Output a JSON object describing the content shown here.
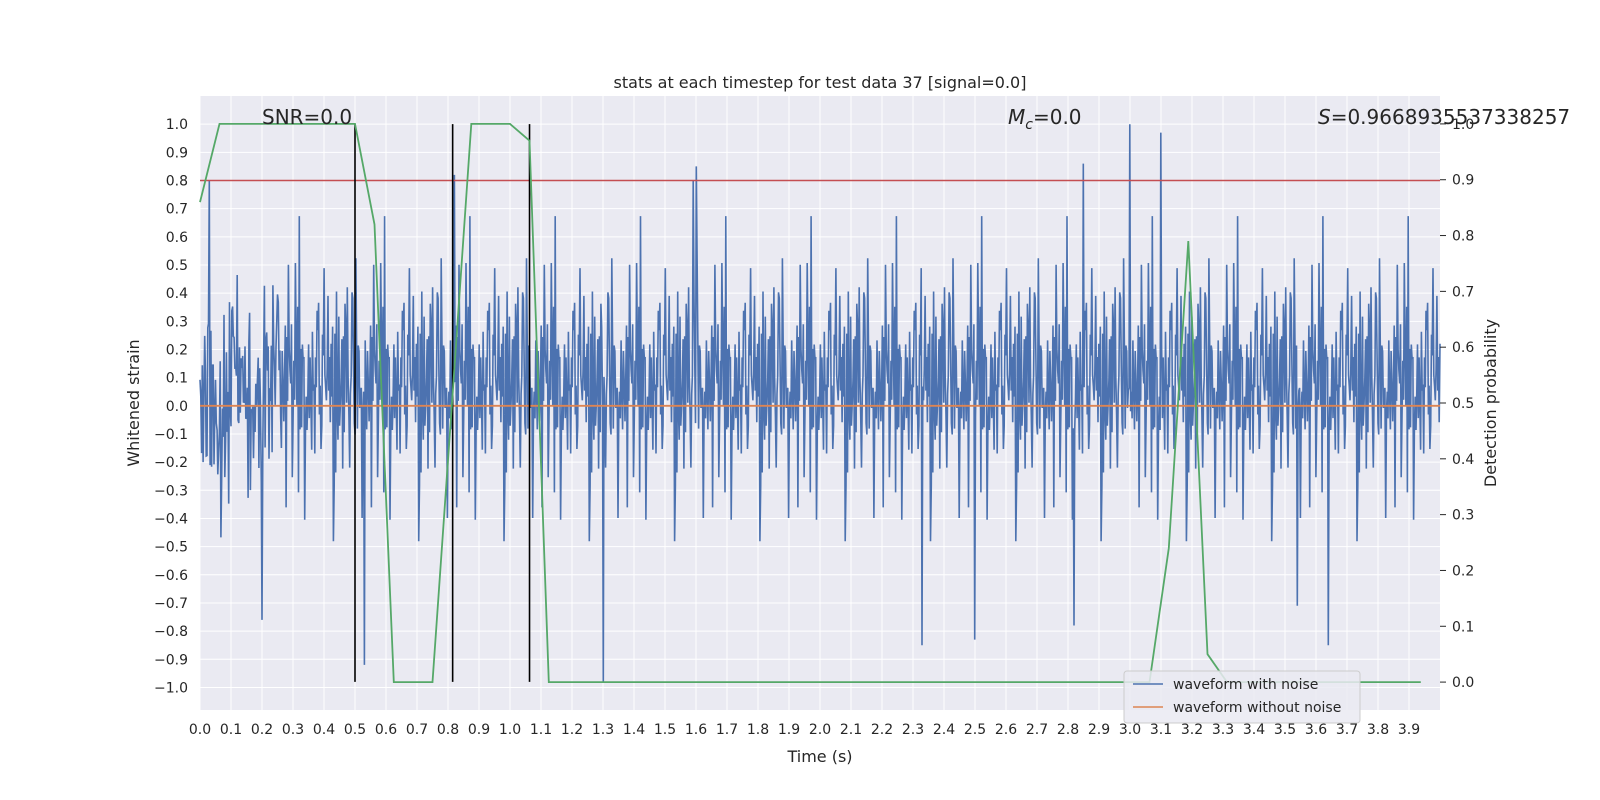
{
  "chart_data": {
    "type": "line",
    "title": "stats at each timestep for test data 37 [signal=0.0]",
    "xlabel": "Time (s)",
    "ylabel": "Whitened strain",
    "y2label": "Detection probability",
    "xlim": [
      0.0,
      4.0
    ],
    "ylim": [
      -1.08,
      1.1
    ],
    "y2lim": [
      -0.05,
      1.05
    ],
    "grid": true,
    "legend_position": "lower-right",
    "annotations": {
      "snr_text": "SNR=0.0",
      "mc_symbol": "M",
      "mc_sub": "c",
      "mc_value": "=0.0",
      "s_symbol": "S",
      "s_value": "=0.9668935537338257"
    },
    "threshold_y": 0.8,
    "vlines_x": [
      0.5,
      0.815,
      1.063
    ],
    "vlines_yrange": [
      -0.98,
      1.0
    ],
    "series": [
      {
        "name": "waveform with noise",
        "color": "#4c72b0",
        "kind": "noise",
        "envelope": 0.4,
        "peaks": [
          {
            "x": 0.03,
            "y": 0.8
          },
          {
            "x": 0.2,
            "y": -0.76
          },
          {
            "x": 0.82,
            "y": 0.82
          },
          {
            "x": 1.6,
            "y": 0.85
          },
          {
            "x": 1.59,
            "y": 0.8
          },
          {
            "x": 1.3,
            "y": -0.98
          },
          {
            "x": 0.53,
            "y": -0.92
          },
          {
            "x": 2.85,
            "y": 0.86
          },
          {
            "x": 3.0,
            "y": 1.0
          },
          {
            "x": 3.1,
            "y": 0.97
          },
          {
            "x": 2.33,
            "y": -0.85
          },
          {
            "x": 2.5,
            "y": -0.83
          },
          {
            "x": 3.64,
            "y": -0.85
          },
          {
            "x": 3.54,
            "y": -0.71
          },
          {
            "x": 2.82,
            "y": -0.78
          }
        ]
      },
      {
        "name": "waveform without noise",
        "color": "#dd8452",
        "kind": "flat",
        "value": 0.0
      },
      {
        "name": "Detection probability",
        "color": "#55a868",
        "axis": "right",
        "x": [
          0.0,
          0.063,
          0.125,
          0.188,
          0.25,
          0.313,
          0.375,
          0.438,
          0.5,
          0.563,
          0.625,
          0.688,
          0.75,
          0.813,
          0.875,
          0.938,
          1.0,
          1.063,
          1.125,
          1.188,
          1.25,
          1.5,
          2.0,
          2.5,
          3.0,
          3.063,
          3.125,
          3.188,
          3.25,
          3.313,
          3.375,
          3.5,
          3.75,
          3.938
        ],
        "y": [
          0.86,
          1.0,
          1.0,
          1.0,
          1.0,
          1.0,
          1.0,
          1.0,
          1.0,
          0.82,
          0.0,
          0.0,
          0.0,
          0.5,
          1.0,
          1.0,
          1.0,
          0.97,
          0.0,
          0.0,
          0.0,
          0.0,
          0.0,
          0.0,
          0.0,
          0.0,
          0.24,
          0.79,
          0.05,
          0.0,
          0.0,
          0.0,
          0.0,
          0.0
        ]
      }
    ],
    "xticks": [
      "0.0",
      "0.1",
      "0.2",
      "0.3",
      "0.4",
      "0.5",
      "0.6",
      "0.7",
      "0.8",
      "0.9",
      "1.0",
      "1.1",
      "1.2",
      "1.3",
      "1.4",
      "1.5",
      "1.6",
      "1.7",
      "1.8",
      "1.9",
      "2.0",
      "2.1",
      "2.2",
      "2.3",
      "2.4",
      "2.5",
      "2.6",
      "2.7",
      "2.8",
      "2.9",
      "3.0",
      "3.1",
      "3.2",
      "3.3",
      "3.4",
      "3.5",
      "3.6",
      "3.7",
      "3.8",
      "3.9"
    ],
    "yticks": [
      "−1.0",
      "−0.9",
      "−0.8",
      "−0.7",
      "−0.6",
      "−0.5",
      "−0.4",
      "−0.3",
      "−0.2",
      "−0.1",
      "0.0",
      "0.1",
      "0.2",
      "0.3",
      "0.4",
      "0.5",
      "0.6",
      "0.7",
      "0.8",
      "0.9",
      "1.0"
    ],
    "y2ticks": [
      "0.0",
      "0.1",
      "0.2",
      "0.3",
      "0.4",
      "0.5",
      "0.6",
      "0.7",
      "0.8",
      "0.9",
      "1.0"
    ],
    "colors": {
      "plot_bg": "#eaeaf2",
      "grid": "#ffffff",
      "threshold": "#c44e52",
      "vline": "#000000"
    }
  }
}
